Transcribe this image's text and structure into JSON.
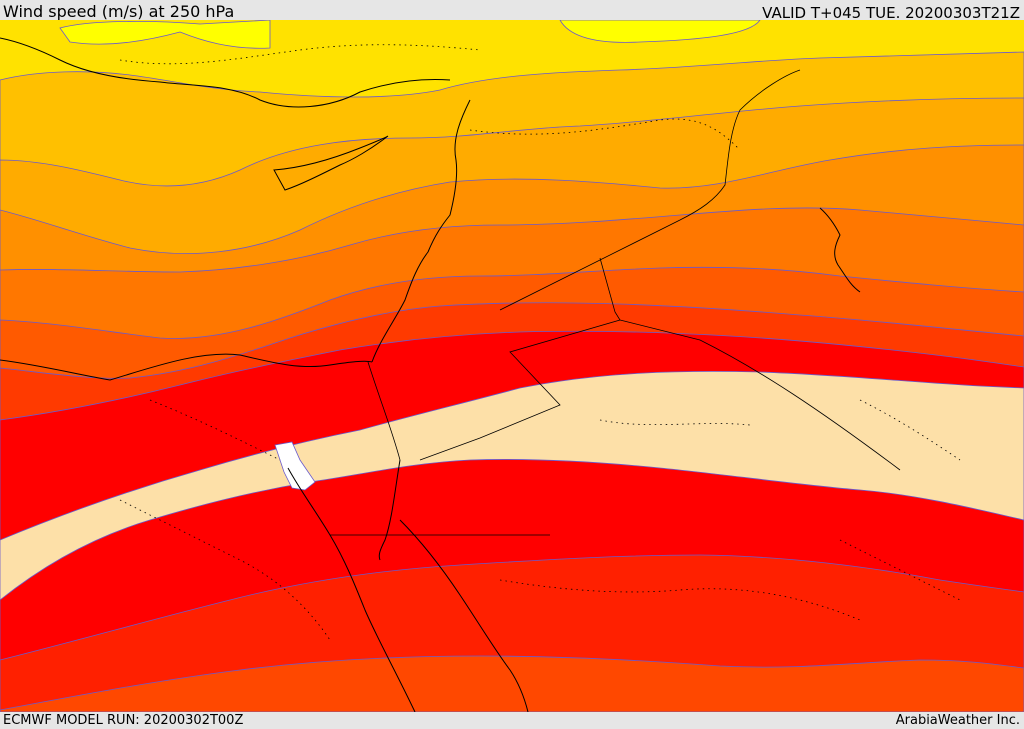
{
  "header": {
    "title": "Wind speed (m/s) at 250 hPa",
    "valid_time": "VALID T+045 TUE. 20200303T21Z"
  },
  "footer": {
    "model_run": "ECMWF MODEL RUN: 20200302T00Z",
    "credit": "ArabiaWeather Inc."
  },
  "map": {
    "field": "wind speed at 250 hPa",
    "colors": {
      "band_1": "#ffff00",
      "band_2": "#ffe200",
      "band_3": "#ffc000",
      "band_4": "#ffab00",
      "band_5": "#ff9000",
      "band_6": "#ff7700",
      "band_7": "#ff5a00",
      "band_8": "#ff3a00",
      "band_9": "#ff0000",
      "jet_core": "#fde0a8",
      "jet_max": "#ffffff",
      "contour_line": "#6a5acd",
      "coastline": "#000000"
    }
  }
}
